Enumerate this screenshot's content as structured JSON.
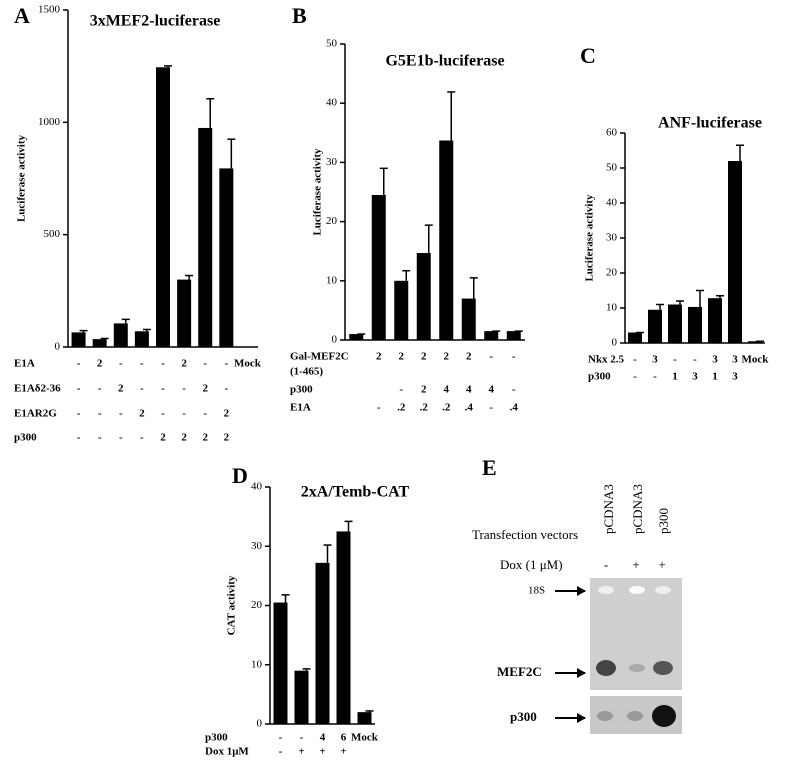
{
  "chart_data": [
    {
      "type": "bar",
      "panel": "A",
      "title": "3xMEF2-luciferase",
      "ylabel": "Luciferase activity",
      "color": "#000000",
      "values": [
        65,
        35,
        105,
        70,
        1245,
        300,
        975,
        795
      ],
      "errors": [
        8,
        3,
        18,
        8,
        6,
        18,
        130,
        130
      ],
      "ylim": [
        0,
        1500
      ],
      "yticks": [
        0,
        500,
        1000,
        1500
      ],
      "conditions": [
        {
          "label": "E1A",
          "cells": [
            "-",
            "2",
            "-",
            "-",
            "-",
            "2",
            "-",
            "-",
            "Mock"
          ]
        },
        {
          "label": "E1Aδ2-36",
          "cells": [
            "-",
            "-",
            "2",
            "-",
            "-",
            "-",
            "2",
            "-"
          ]
        },
        {
          "label": "E1AR2G",
          "cells": [
            "-",
            "-",
            "-",
            "2",
            "-",
            "-",
            "-",
            "2"
          ]
        },
        {
          "label": "p300",
          "cells": [
            "-",
            "-",
            "-",
            "-",
            "2",
            "2",
            "2",
            "2"
          ]
        }
      ]
    },
    {
      "type": "bar",
      "panel": "B",
      "title": "G5E1b-luciferase",
      "ylabel": "Luciferase activity",
      "color": "#000000",
      "values": [
        1,
        24.5,
        10,
        14.7,
        33.7,
        7,
        1.5,
        1.5
      ],
      "errors": [
        0,
        4.5,
        1.7,
        4.7,
        8.2,
        3.5,
        0,
        0
      ],
      "ylim": [
        0,
        50
      ],
      "yticks": [
        0,
        10,
        20,
        30,
        40,
        50
      ],
      "conditions": [
        {
          "label": "Gal-MEF2C",
          "sublabel": "(1-465)",
          "cells": [
            null,
            "2",
            "2",
            "2",
            "2",
            "2",
            "-",
            "-"
          ]
        },
        {
          "label": "p300",
          "cells": [
            null,
            null,
            "-",
            "2",
            "4",
            "4",
            "4",
            "-"
          ]
        },
        {
          "label": "E1A",
          "cells": [
            null,
            "-",
            ".2",
            ".2",
            ".2",
            ".4",
            "-",
            ".4"
          ]
        }
      ]
    },
    {
      "type": "bar",
      "panel": "C",
      "title": "ANF-luciferase",
      "ylabel": "Luciferase activity",
      "color": "#000000",
      "values": [
        3,
        9.5,
        11,
        10.3,
        12.8,
        52,
        0.5
      ],
      "errors": [
        0,
        1.5,
        1,
        4.7,
        0.7,
        4.5,
        0
      ],
      "ylim": [
        0,
        60
      ],
      "yticks": [
        0,
        10,
        20,
        30,
        40,
        50,
        60
      ],
      "conditions": [
        {
          "label": "Nkx 2.5",
          "cells": [
            "-",
            "3",
            "-",
            "-",
            "3",
            "3",
            "Mock"
          ]
        },
        {
          "label": "p300",
          "cells": [
            "-",
            "-",
            "1",
            "3",
            "1",
            "3"
          ]
        }
      ]
    },
    {
      "type": "bar",
      "panel": "D",
      "title": "2xA/Temb-CAT",
      "ylabel": "CAT activity",
      "color": "#000000",
      "values": [
        20.5,
        9,
        27.2,
        32.5,
        2
      ],
      "errors": [
        1.3,
        0.3,
        3,
        1.7,
        0.2
      ],
      "ylim": [
        0,
        40
      ],
      "yticks": [
        0,
        10,
        20,
        30,
        40
      ],
      "conditions": [
        {
          "label": "p300",
          "cells": [
            "-",
            "-",
            "4",
            "6",
            "Mock"
          ]
        },
        {
          "label": "Dox 1μM",
          "cells": [
            "-",
            "+",
            "+",
            "+"
          ]
        }
      ]
    }
  ],
  "gel": {
    "panel": "E",
    "row_title": "Transfection vectors",
    "lanes": [
      "pCDNA3",
      "pCDNA3",
      "p300"
    ],
    "dox_label": "Dox (1 μM)",
    "dox": [
      "-",
      "+",
      "+"
    ],
    "bands": [
      "18S",
      "MEF2C",
      "p300"
    ]
  }
}
